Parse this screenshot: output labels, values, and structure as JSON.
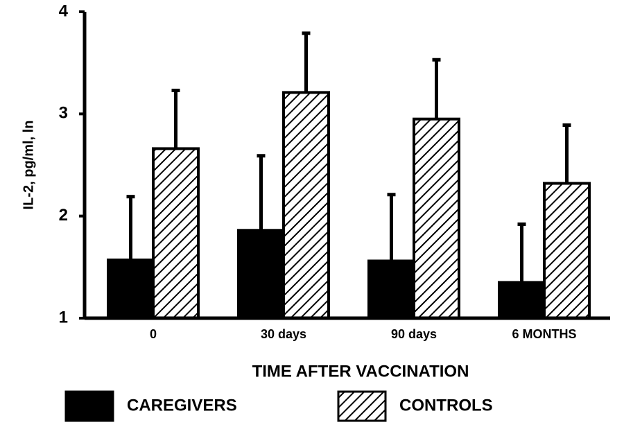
{
  "chart_data": {
    "type": "bar",
    "x_label": "TIME AFTER VACCINATION",
    "y_label": "IL-2, pg/ml, ln",
    "categories": [
      "0",
      "30 days",
      "90 days",
      "6 MONTHS"
    ],
    "series": [
      {
        "name": "CAREGIVERS",
        "color": "#000000",
        "hatch": false,
        "values": [
          1.57,
          1.86,
          1.56,
          1.35
        ],
        "errors": [
          0.62,
          0.73,
          0.65,
          0.57
        ]
      },
      {
        "name": "CONTROLS",
        "color": "#000000",
        "hatch": true,
        "values": [
          2.66,
          3.21,
          2.95,
          2.32
        ],
        "errors": [
          0.57,
          0.58,
          0.58,
          0.57
        ]
      }
    ],
    "ylim": [
      1,
      4
    ],
    "yticks": [
      1,
      2,
      3,
      4
    ],
    "grid": false
  }
}
